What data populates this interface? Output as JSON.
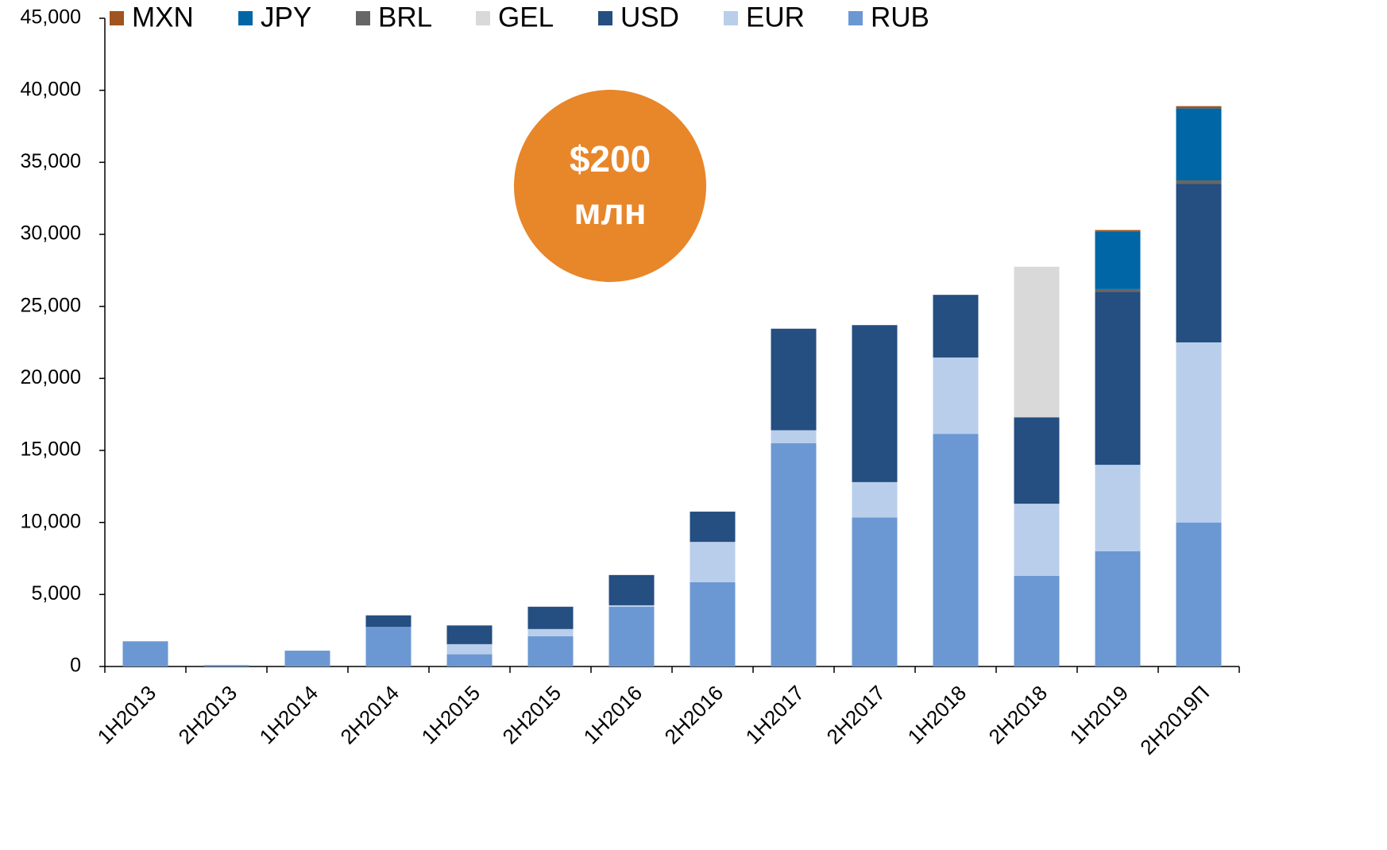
{
  "chart_data": {
    "type": "stacked_bar",
    "annotation": [
      "$200",
      "млн"
    ],
    "annotation_color": "#e8862a",
    "categories": [
      "1H2013",
      "2H2013",
      "1H2014",
      "2H2014",
      "1H2015",
      "2H2015",
      "1H2016",
      "2H2016",
      "1H2017",
      "2H2017",
      "1H2018",
      "2H2018",
      "1H2019",
      "2H2019П"
    ],
    "series": [
      {
        "name": "MXN",
        "color": "#a0541e",
        "values": [
          0,
          0,
          0,
          0,
          0,
          0,
          0,
          0,
          0,
          0,
          0,
          0,
          100,
          150
        ]
      },
      {
        "name": "JPY",
        "color": "#0066a6",
        "values": [
          0,
          0,
          0,
          0,
          0,
          0,
          0,
          0,
          0,
          0,
          0,
          0,
          4000,
          5000
        ]
      },
      {
        "name": "BRL",
        "color": "#666666",
        "values": [
          0,
          0,
          0,
          0,
          0,
          0,
          0,
          0,
          0,
          0,
          0,
          0,
          200,
          250
        ]
      },
      {
        "name": "GEL",
        "color": "#d9d9d9",
        "values": [
          0,
          0,
          0,
          0,
          0,
          0,
          0,
          0,
          0,
          0,
          0,
          10450,
          0,
          0
        ]
      },
      {
        "name": "USD",
        "color": "#254e81",
        "values": [
          0,
          0,
          0,
          800,
          1300,
          1550,
          2100,
          2100,
          7050,
          10900,
          4350,
          6000,
          12000,
          11000
        ]
      },
      {
        "name": "EUR",
        "color": "#b9ceeb",
        "values": [
          0,
          0,
          0,
          0,
          700,
          500,
          100,
          2800,
          900,
          2450,
          5300,
          5000,
          6000,
          12500
        ]
      },
      {
        "name": "RUB",
        "color": "#6b98d3",
        "values": [
          1750,
          100,
          1100,
          2750,
          850,
          2100,
          4150,
          5850,
          15500,
          10350,
          16150,
          6300,
          8000,
          10000
        ]
      }
    ],
    "ylim": [
      0,
      45000
    ],
    "yticks": [
      0,
      {
        "value": 5000,
        "label": "5,000"
      },
      {
        "value": 10000,
        "label": "10,000"
      },
      {
        "value": 15000,
        "label": "15,000"
      },
      {
        "value": 20000,
        "label": "20,000"
      },
      {
        "value": 25000,
        "label": "25,000"
      },
      {
        "value": 30000,
        "label": "30,000"
      },
      {
        "value": 35000,
        "label": "35,000"
      },
      {
        "value": 40000,
        "label": "40,000"
      },
      {
        "value": 45000,
        "label": "45,000"
      }
    ],
    "legend": "top"
  }
}
